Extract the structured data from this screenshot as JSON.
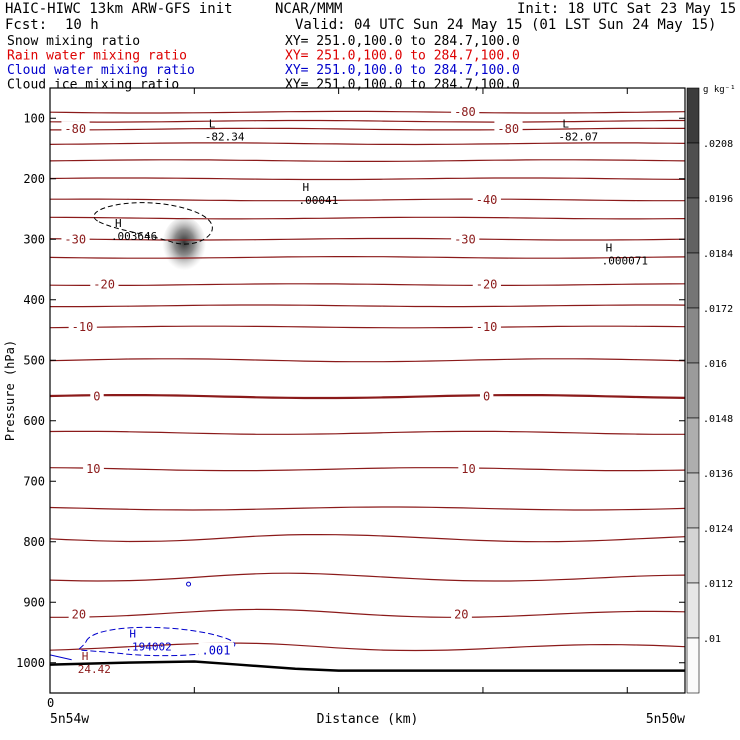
{
  "header": {
    "model": "HAIC-HIWC 13km ARW-GFS init",
    "org": "NCAR/MMM",
    "init": "Init: 18 UTC Sat 23 May 15",
    "fcst_label": "Fcst:",
    "fcst_value": "10 h",
    "valid": "Valid: 04 UTC Sun 24 May 15 (01 LST Sun 24 May 15)",
    "fields": [
      {
        "name": "Snow mixing ratio",
        "xy": "XY= 251.0,100.0 to 284.7,100.0",
        "color": "#000000"
      },
      {
        "name": "Rain water mixing ratio",
        "xy": "XY= 251.0,100.0 to 284.7,100.0",
        "color": "#dd0000"
      },
      {
        "name": "Cloud water mixing ratio",
        "xy": "XY= 251.0,100.0 to 284.7,100.0",
        "color": "#0000cc"
      },
      {
        "name": "Cloud ice mixing ratio",
        "xy": "XY= 251.0,100.0 to 284.7,100.0",
        "color": "#000000"
      }
    ]
  },
  "chart_data": {
    "type": "cross-section",
    "xlabel": "Distance (km)",
    "ylabel": "Pressure (hPa)",
    "x_ticks": [
      0,
      1,
      2,
      3,
      4
    ],
    "x_tick_label": "0",
    "x_left_label": "5n54w",
    "x_right_label": "5n50w",
    "y_ticks": [
      100,
      200,
      300,
      400,
      500,
      600,
      700,
      800,
      900,
      1000
    ],
    "ylim": [
      50,
      1050
    ],
    "colorbar": {
      "unit_label": "g kg⁻¹",
      "labels": [
        ".0208",
        ".0196",
        ".0184",
        ".0172",
        ".016",
        ".0148",
        ".0136",
        ".0124",
        ".0112",
        ".01"
      ]
    },
    "isotherms": [
      {
        "p": 90,
        "label": "-80"
      },
      {
        "p": 105,
        "label": ""
      },
      {
        "p": 118,
        "label": "-80"
      },
      {
        "p": 142,
        "label": ""
      },
      {
        "p": 170,
        "label": ""
      },
      {
        "p": 200,
        "label": ""
      },
      {
        "p": 235,
        "label": "-40"
      },
      {
        "p": 265,
        "label": ""
      },
      {
        "p": 300,
        "label": "-30"
      },
      {
        "p": 330,
        "label": ""
      },
      {
        "p": 375,
        "label": "-20"
      },
      {
        "p": 410,
        "label": ""
      },
      {
        "p": 445,
        "label": "-10"
      },
      {
        "p": 500,
        "label": ""
      },
      {
        "p": 560,
        "label": "0",
        "bold": true
      },
      {
        "p": 620,
        "label": ""
      },
      {
        "p": 680,
        "label": "10"
      },
      {
        "p": 745,
        "label": ""
      },
      {
        "p": 795,
        "label": ""
      },
      {
        "p": 860,
        "label": ""
      },
      {
        "p": 920,
        "label": "20"
      },
      {
        "p": 975,
        "label": ""
      }
    ],
    "annotations": [
      {
        "letter": "L",
        "value": "-82.34",
        "x": 1.1,
        "p": 125
      },
      {
        "letter": "L",
        "value": "-82.07",
        "x": 3.55,
        "p": 125
      },
      {
        "letter": "H",
        "value": ".00041",
        "x": 1.75,
        "p": 230
      },
      {
        "letter": "H",
        "value": ".003646",
        "x": 0.45,
        "p": 290
      },
      {
        "letter": "H",
        "value": ".000071",
        "x": 3.85,
        "p": 330
      },
      {
        "letter": "H",
        "value": "24.42",
        "x": 0.22,
        "p": 1005,
        "color": "#8b1a1a"
      },
      {
        "letter": "H",
        "value": ".194002",
        "x": 0.55,
        "p": 968,
        "color": "#0000cc"
      }
    ],
    "line_labels": [
      {
        "text": "-80",
        "x": 2.8,
        "p": 90
      },
      {
        "text": "-80",
        "x": 0.1,
        "p": 118
      },
      {
        "text": "-80",
        "x": 3.1,
        "p": 118
      },
      {
        "text": "-40",
        "x": 2.95,
        "p": 235
      },
      {
        "text": "-30",
        "x": 0.1,
        "p": 300
      },
      {
        "text": "-30",
        "x": 2.8,
        "p": 300
      },
      {
        "text": "-20",
        "x": 0.3,
        "p": 375
      },
      {
        "text": "-20",
        "x": 2.95,
        "p": 375
      },
      {
        "text": "-10",
        "x": 0.15,
        "p": 445
      },
      {
        "text": "-10",
        "x": 2.95,
        "p": 445
      },
      {
        "text": "0",
        "x": 0.3,
        "p": 560
      },
      {
        "text": "0",
        "x": 3.0,
        "p": 560
      },
      {
        "text": "10",
        "x": 0.25,
        "p": 680
      },
      {
        "text": "10",
        "x": 2.85,
        "p": 680
      },
      {
        "text": "20",
        "x": 0.15,
        "p": 920
      },
      {
        "text": "20",
        "x": 2.8,
        "p": 920
      },
      {
        "text": ".001",
        "x": 1.05,
        "p": 980,
        "color": "#0000cc"
      }
    ]
  },
  "colors": {
    "isotherm": "#8b1a1a",
    "cloud_water": "#0000cc",
    "rain": "#dd0000",
    "text": "#000000"
  }
}
